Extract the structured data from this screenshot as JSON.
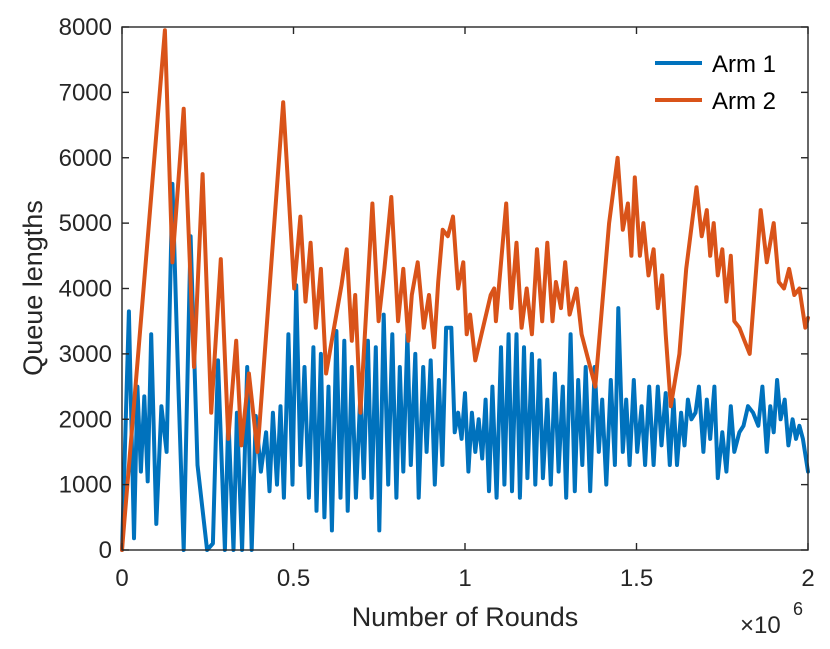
{
  "chart_data": {
    "type": "line",
    "title": "",
    "xlabel": "Number of Rounds",
    "ylabel": "Queue lengths",
    "x_exponent_label": "×10",
    "x_exponent_power": "6",
    "xlim": [
      0,
      2
    ],
    "ylim": [
      0,
      8000
    ],
    "x_ticks": [
      0,
      0.5,
      1,
      1.5,
      2
    ],
    "x_tick_labels": [
      "0",
      "0.5",
      "1",
      "1.5",
      "2"
    ],
    "y_ticks": [
      0,
      1000,
      2000,
      3000,
      4000,
      5000,
      6000,
      7000,
      8000
    ],
    "y_tick_labels": [
      "0",
      "1000",
      "2000",
      "3000",
      "4000",
      "5000",
      "6000",
      "7000",
      "8000"
    ],
    "grid": false,
    "legend_position": "top-right",
    "colors": {
      "Arm 1": "#0072BD",
      "Arm 2": "#D95319"
    },
    "series": [
      {
        "name": "Arm 1",
        "color": "#0072BD",
        "points": [
          [
            0,
            0
          ],
          [
            0.02,
            3650
          ],
          [
            0.035,
            180
          ],
          [
            0.045,
            2500
          ],
          [
            0.055,
            1200
          ],
          [
            0.065,
            2350
          ],
          [
            0.075,
            1050
          ],
          [
            0.085,
            3300
          ],
          [
            0.1,
            400
          ],
          [
            0.115,
            2200
          ],
          [
            0.13,
            1500
          ],
          [
            0.147,
            5600
          ],
          [
            0.165,
            2400
          ],
          [
            0.18,
            0
          ],
          [
            0.2,
            4800
          ],
          [
            0.22,
            1300
          ],
          [
            0.248,
            0
          ],
          [
            0.265,
            100
          ],
          [
            0.28,
            2900
          ],
          [
            0.3,
            0
          ],
          [
            0.31,
            2050
          ],
          [
            0.325,
            0
          ],
          [
            0.335,
            2100
          ],
          [
            0.35,
            0
          ],
          [
            0.365,
            2800
          ],
          [
            0.378,
            0
          ],
          [
            0.39,
            2050
          ],
          [
            0.405,
            1200
          ],
          [
            0.42,
            1800
          ],
          [
            0.43,
            900
          ],
          [
            0.44,
            2100
          ],
          [
            0.452,
            1000
          ],
          [
            0.462,
            2200
          ],
          [
            0.472,
            800
          ],
          [
            0.485,
            3300
          ],
          [
            0.497,
            1000
          ],
          [
            0.508,
            4050
          ],
          [
            0.52,
            1300
          ],
          [
            0.532,
            2800
          ],
          [
            0.545,
            800
          ],
          [
            0.558,
            3100
          ],
          [
            0.567,
            600
          ],
          [
            0.58,
            3000
          ],
          [
            0.59,
            500
          ],
          [
            0.602,
            2500
          ],
          [
            0.612,
            300
          ],
          [
            0.625,
            3350
          ],
          [
            0.637,
            800
          ],
          [
            0.648,
            3200
          ],
          [
            0.658,
            600
          ],
          [
            0.67,
            2800
          ],
          [
            0.682,
            800
          ],
          [
            0.695,
            2400
          ],
          [
            0.705,
            1100
          ],
          [
            0.717,
            3200
          ],
          [
            0.728,
            800
          ],
          [
            0.74,
            3100
          ],
          [
            0.75,
            300
          ],
          [
            0.763,
            3600
          ],
          [
            0.776,
            1000
          ],
          [
            0.788,
            3300
          ],
          [
            0.8,
            800
          ],
          [
            0.81,
            2800
          ],
          [
            0.82,
            1200
          ],
          [
            0.832,
            3300
          ],
          [
            0.842,
            1300
          ],
          [
            0.855,
            3000
          ],
          [
            0.865,
            800
          ],
          [
            0.878,
            2800
          ],
          [
            0.888,
            1500
          ],
          [
            0.9,
            2900
          ],
          [
            0.912,
            1000
          ],
          [
            0.924,
            2600
          ],
          [
            0.934,
            1300
          ],
          [
            0.945,
            3400
          ],
          [
            0.96,
            3400
          ],
          [
            0.97,
            1800
          ],
          [
            0.98,
            2100
          ],
          [
            0.99,
            1700
          ],
          [
            1.0,
            2400
          ],
          [
            1.01,
            1200
          ],
          [
            1.02,
            2100
          ],
          [
            1.03,
            1500
          ],
          [
            1.04,
            2000
          ],
          [
            1.05,
            1400
          ],
          [
            1.06,
            2300
          ],
          [
            1.07,
            900
          ],
          [
            1.08,
            2500
          ],
          [
            1.092,
            800
          ],
          [
            1.105,
            3100
          ],
          [
            1.115,
            1000
          ],
          [
            1.127,
            3300
          ],
          [
            1.137,
            900
          ],
          [
            1.15,
            3300
          ],
          [
            1.16,
            800
          ],
          [
            1.172,
            3100
          ],
          [
            1.182,
            1100
          ],
          [
            1.195,
            3000
          ],
          [
            1.205,
            1000
          ],
          [
            1.217,
            2900
          ],
          [
            1.227,
            1100
          ],
          [
            1.24,
            2300
          ],
          [
            1.25,
            1000
          ],
          [
            1.262,
            2700
          ],
          [
            1.273,
            1200
          ],
          [
            1.285,
            2500
          ],
          [
            1.295,
            800
          ],
          [
            1.308,
            3300
          ],
          [
            1.32,
            900
          ],
          [
            1.33,
            2600
          ],
          [
            1.342,
            1300
          ],
          [
            1.352,
            2800
          ],
          [
            1.365,
            900
          ],
          [
            1.378,
            2800
          ],
          [
            1.39,
            1500
          ],
          [
            1.4,
            2300
          ],
          [
            1.412,
            1000
          ],
          [
            1.425,
            2600
          ],
          [
            1.437,
            1300
          ],
          [
            1.447,
            3700
          ],
          [
            1.46,
            1500
          ],
          [
            1.47,
            2300
          ],
          [
            1.48,
            1300
          ],
          [
            1.492,
            2600
          ],
          [
            1.502,
            1500
          ],
          [
            1.515,
            2200
          ],
          [
            1.525,
            1300
          ],
          [
            1.537,
            2500
          ],
          [
            1.55,
            1300
          ],
          [
            1.562,
            2500
          ],
          [
            1.573,
            1600
          ],
          [
            1.585,
            2400
          ],
          [
            1.597,
            1300
          ],
          [
            1.608,
            2300
          ],
          [
            1.618,
            1300
          ],
          [
            1.63,
            2100
          ],
          [
            1.64,
            1600
          ],
          [
            1.65,
            2300
          ],
          [
            1.66,
            2000
          ],
          [
            1.672,
            2100
          ],
          [
            1.682,
            2500
          ],
          [
            1.695,
            1500
          ],
          [
            1.705,
            2300
          ],
          [
            1.715,
            1700
          ],
          [
            1.727,
            2500
          ],
          [
            1.737,
            1100
          ],
          [
            1.75,
            1800
          ],
          [
            1.762,
            1200
          ],
          [
            1.775,
            2200
          ],
          [
            1.785,
            1500
          ],
          [
            1.8,
            1800
          ],
          [
            1.812,
            1900
          ],
          [
            1.825,
            2200
          ],
          [
            1.84,
            2100
          ],
          [
            1.855,
            1900
          ],
          [
            1.867,
            2500
          ],
          [
            1.88,
            1500
          ],
          [
            1.89,
            2200
          ],
          [
            1.9,
            1800
          ],
          [
            1.91,
            2600
          ],
          [
            1.92,
            2000
          ],
          [
            1.932,
            2300
          ],
          [
            1.943,
            1600
          ],
          [
            1.955,
            2000
          ],
          [
            1.965,
            1700
          ],
          [
            1.975,
            1900
          ],
          [
            1.985,
            1700
          ],
          [
            2.0,
            1200
          ]
        ]
      },
      {
        "name": "Arm 2",
        "color": "#D95319",
        "points": [
          [
            0,
            0
          ],
          [
            0.125,
            7950
          ],
          [
            0.147,
            4400
          ],
          [
            0.18,
            6750
          ],
          [
            0.21,
            2800
          ],
          [
            0.235,
            5750
          ],
          [
            0.26,
            2100
          ],
          [
            0.288,
            4450
          ],
          [
            0.31,
            1700
          ],
          [
            0.333,
            3200
          ],
          [
            0.348,
            1600
          ],
          [
            0.37,
            2700
          ],
          [
            0.395,
            1500
          ],
          [
            0.47,
            6850
          ],
          [
            0.502,
            4000
          ],
          [
            0.52,
            5100
          ],
          [
            0.535,
            3800
          ],
          [
            0.55,
            4700
          ],
          [
            0.565,
            3400
          ],
          [
            0.58,
            4300
          ],
          [
            0.595,
            2700
          ],
          [
            0.615,
            3300
          ],
          [
            0.64,
            4050
          ],
          [
            0.655,
            4600
          ],
          [
            0.67,
            3200
          ],
          [
            0.68,
            3900
          ],
          [
            0.695,
            2100
          ],
          [
            0.73,
            5300
          ],
          [
            0.748,
            3500
          ],
          [
            0.765,
            4300
          ],
          [
            0.785,
            5400
          ],
          [
            0.805,
            3500
          ],
          [
            0.82,
            4300
          ],
          [
            0.835,
            3200
          ],
          [
            0.845,
            3900
          ],
          [
            0.862,
            4400
          ],
          [
            0.88,
            3400
          ],
          [
            0.895,
            3900
          ],
          [
            0.91,
            3100
          ],
          [
            0.922,
            4100
          ],
          [
            0.935,
            4900
          ],
          [
            0.95,
            4800
          ],
          [
            0.965,
            5100
          ],
          [
            0.98,
            4000
          ],
          [
            0.995,
            4400
          ],
          [
            1.005,
            3300
          ],
          [
            1.015,
            3600
          ],
          [
            1.03,
            2900
          ],
          [
            1.075,
            3900
          ],
          [
            1.085,
            4000
          ],
          [
            1.09,
            3500
          ],
          [
            1.12,
            5300
          ],
          [
            1.135,
            3700
          ],
          [
            1.15,
            4700
          ],
          [
            1.165,
            3400
          ],
          [
            1.18,
            4000
          ],
          [
            1.195,
            3300
          ],
          [
            1.21,
            4600
          ],
          [
            1.225,
            3500
          ],
          [
            1.24,
            4700
          ],
          [
            1.255,
            3500
          ],
          [
            1.265,
            4100
          ],
          [
            1.28,
            3700
          ],
          [
            1.292,
            4400
          ],
          [
            1.305,
            3600
          ],
          [
            1.325,
            4000
          ],
          [
            1.34,
            3300
          ],
          [
            1.38,
            2500
          ],
          [
            1.42,
            5000
          ],
          [
            1.445,
            6000
          ],
          [
            1.46,
            4900
          ],
          [
            1.475,
            5300
          ],
          [
            1.485,
            4500
          ],
          [
            1.495,
            5700
          ],
          [
            1.51,
            4500
          ],
          [
            1.52,
            5000
          ],
          [
            1.535,
            4200
          ],
          [
            1.55,
            4600
          ],
          [
            1.562,
            3700
          ],
          [
            1.575,
            4200
          ],
          [
            1.585,
            3300
          ],
          [
            1.6,
            2200
          ],
          [
            1.625,
            3000
          ],
          [
            1.645,
            4300
          ],
          [
            1.675,
            5550
          ],
          [
            1.69,
            4800
          ],
          [
            1.705,
            5200
          ],
          [
            1.715,
            4500
          ],
          [
            1.725,
            5000
          ],
          [
            1.737,
            4200
          ],
          [
            1.75,
            4600
          ],
          [
            1.762,
            3800
          ],
          [
            1.775,
            4500
          ],
          [
            1.785,
            3500
          ],
          [
            1.8,
            3400
          ],
          [
            1.815,
            3200
          ],
          [
            1.83,
            3000
          ],
          [
            1.862,
            5200
          ],
          [
            1.88,
            4400
          ],
          [
            1.9,
            5000
          ],
          [
            1.915,
            4100
          ],
          [
            1.93,
            4000
          ],
          [
            1.945,
            4300
          ],
          [
            1.96,
            3900
          ],
          [
            1.975,
            4000
          ],
          [
            1.992,
            3400
          ],
          [
            2.0,
            3550
          ]
        ]
      }
    ]
  }
}
